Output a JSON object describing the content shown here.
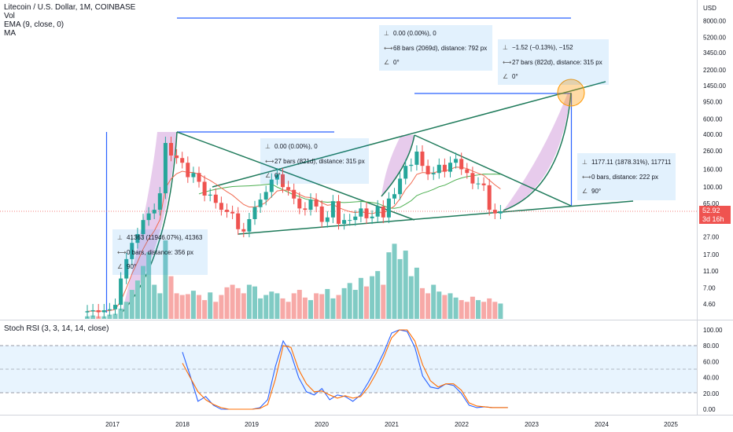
{
  "header": {
    "symbol_line": "Litecoin / U.S. Dollar, 1M, COINBASE",
    "indicators": [
      "Vol",
      "EMA (9, close, 0)",
      "MA"
    ]
  },
  "rsi_title": "Stoch RSI (3, 3, 14, 14, close)",
  "currency_label": "USD",
  "current_price": {
    "value": "52.92",
    "countdown": "3d 16h"
  },
  "info_boxes": [
    {
      "line1": "41363 (11946.07%), 41363",
      "line2": "0 bars, distance: 356 px",
      "line3": "90°"
    },
    {
      "line1": "0.00 (0.00%), 0",
      "line2": "27 bars (821d), distance: 315 px",
      "line3": "0°"
    },
    {
      "line1": "0.00 (0.00%), 0",
      "line2": "68 bars (2069d), distance: 792 px",
      "line3": "0°"
    },
    {
      "line1": "−1.52 (−0.13%), −152",
      "line2": "27 bars (822d), distance: 315 px",
      "line3": "0°"
    },
    {
      "line1": "1177.11 (1878.31%), 117711",
      "line2": "0 bars, distance: 222 px",
      "line3": "90°"
    }
  ],
  "chart_data": [
    {
      "type": "candlestick",
      "title": "Litecoin / U.S. Dollar, 1M, COINBASE",
      "y_scale": "log",
      "y_ticks": [
        "8000.00",
        "5200.00",
        "3450.00",
        "2200.00",
        "1450.00",
        "950.00",
        "600.00",
        "400.00",
        "260.00",
        "160.00",
        "100.00",
        "65.00",
        "42.00",
        "27.00",
        "17.00",
        "11.00",
        "7.00",
        "4.60"
      ],
      "x_ticks": [
        "2017",
        "2018",
        "2019",
        "2020",
        "2021",
        "2022",
        "2023",
        "2024",
        "2025"
      ],
      "colors": {
        "up": "#26a69a",
        "down": "#ef5350",
        "ema": "#f0694f",
        "ma": "#4caf50",
        "trendline": "#1e7a5a",
        "ray": "#2962ff",
        "arc_fill": "#e1bee7"
      },
      "monthly_close": [
        3.8,
        3.9,
        3.7,
        3.9,
        4.0,
        4.5,
        9.0,
        15.0,
        23.0,
        29.0,
        42.0,
        50.0,
        55.0,
        85.0,
        320.0,
        230.0,
        215.0,
        190.0,
        130.0,
        145.0,
        115.0,
        80.0,
        82.0,
        66.0,
        55.0,
        52.0,
        50.0,
        33.0,
        31.0,
        43.0,
        59.0,
        72.0,
        88.0,
        122.0,
        140.0,
        100.0,
        93.0,
        74.0,
        57.0,
        55.0,
        72.0,
        60.0,
        40.0,
        45.0,
        69.0,
        38.0,
        42.0,
        42.0,
        46.0,
        57.0,
        44.0,
        46.0,
        60.0,
        45.0,
        74.0,
        83.0,
        125.0,
        175.0,
        180.0,
        255.0,
        175.0,
        140.0,
        145.0,
        180.0,
        150.0,
        190.0,
        210.0,
        160.0,
        145.0,
        110.0,
        110.0,
        105.0,
        55.0,
        50.0,
        52.92
      ],
      "current_price": 52.92
    },
    {
      "type": "bar",
      "title": "Vol",
      "values": [
        3,
        4,
        3,
        3,
        5,
        6,
        12,
        20,
        34,
        45,
        62,
        78,
        40,
        30,
        92,
        50,
        30,
        28,
        29,
        33,
        28,
        22,
        31,
        20,
        28,
        37,
        40,
        36,
        30,
        40,
        38,
        24,
        28,
        32,
        30,
        24,
        20,
        30,
        34,
        25,
        22,
        30,
        29,
        35,
        24,
        28,
        36,
        42,
        34,
        48,
        38,
        50,
        56,
        40,
        78,
        88,
        70,
        80,
        50,
        60,
        36,
        30,
        40,
        32,
        28,
        30,
        25,
        22,
        20,
        26,
        22,
        20,
        24,
        20,
        18
      ]
    },
    {
      "type": "line",
      "title": "Stoch RSI (3, 3, 14, 14, close)",
      "y_ticks": [
        "100.00",
        "80.00",
        "60.00",
        "40.00",
        "20.00",
        "0.00"
      ],
      "series": [
        {
          "values": [
            72,
            42,
            10,
            16,
            5,
            0,
            0,
            0,
            0,
            0,
            2,
            12,
            54,
            86,
            70,
            40,
            22,
            18,
            26,
            12,
            18,
            16,
            10,
            18,
            34,
            52,
            72,
            96,
            100,
            98,
            78,
            42,
            28,
            26,
            32,
            30,
            20,
            5,
            2,
            3,
            2,
            2,
            2
          ]
        },
        {
          "values": [
            58,
            40,
            22,
            12,
            6,
            2,
            0,
            0,
            0,
            0,
            1,
            6,
            38,
            80,
            78,
            50,
            32,
            22,
            23,
            18,
            14,
            17,
            14,
            16,
            28,
            45,
            66,
            90,
            100,
            100,
            86,
            56,
            36,
            28,
            32,
            32,
            24,
            8,
            4,
            3,
            2,
            2,
            2
          ]
        }
      ]
    }
  ]
}
